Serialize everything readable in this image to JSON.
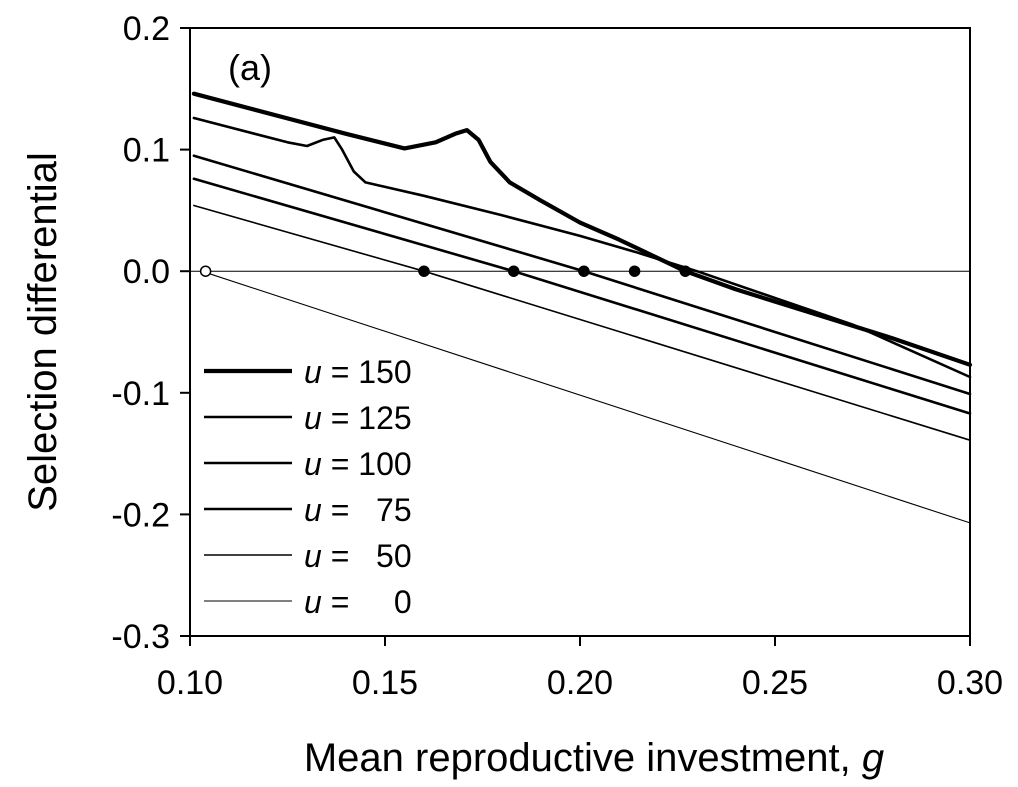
{
  "chart_data": {
    "type": "line",
    "panel_label": "(a)",
    "xlabel": "Mean reproductive investment, ",
    "xlabel_var": "g",
    "ylabel": "Selection differential",
    "xlim": [
      0.1,
      0.3
    ],
    "ylim": [
      -0.3,
      0.2
    ],
    "x_ticks": [
      "0.10",
      "0.15",
      "0.20",
      "0.25",
      "0.30"
    ],
    "y_ticks": [
      "0.2",
      "0.1",
      "0.0",
      "-0.1",
      "-0.2",
      "-0.3"
    ],
    "reference_line_y": 0,
    "legend_position": "bottom-left",
    "series": [
      {
        "name": "u = 150",
        "legend_var": "u",
        "legend_eq": " = 150",
        "weight": "heavy",
        "points": [
          [
            0.101,
            0.146
          ],
          [
            0.14,
            0.113
          ],
          [
            0.155,
            0.101
          ],
          [
            0.163,
            0.106
          ],
          [
            0.168,
            0.113
          ],
          [
            0.171,
            0.116
          ],
          [
            0.174,
            0.108
          ],
          [
            0.177,
            0.09
          ],
          [
            0.182,
            0.073
          ],
          [
            0.19,
            0.058
          ],
          [
            0.2,
            0.04
          ],
          [
            0.21,
            0.026
          ],
          [
            0.227,
            0.0
          ],
          [
            0.24,
            -0.015
          ],
          [
            0.26,
            -0.035
          ],
          [
            0.28,
            -0.055
          ],
          [
            0.3,
            -0.077
          ]
        ]
      },
      {
        "name": "u = 125",
        "legend_var": "u",
        "legend_eq": " = 125",
        "weight": "medium",
        "points": [
          [
            0.101,
            0.126
          ],
          [
            0.125,
            0.106
          ],
          [
            0.13,
            0.103
          ],
          [
            0.134,
            0.108
          ],
          [
            0.137,
            0.11
          ],
          [
            0.139,
            0.1
          ],
          [
            0.142,
            0.082
          ],
          [
            0.145,
            0.073
          ],
          [
            0.16,
            0.062
          ],
          [
            0.18,
            0.046
          ],
          [
            0.2,
            0.029
          ],
          [
            0.214,
            0.016
          ],
          [
            0.23,
            0.0
          ],
          [
            0.25,
            -0.022
          ],
          [
            0.27,
            -0.044
          ],
          [
            0.3,
            -0.087
          ]
        ]
      },
      {
        "name": "u = 100",
        "legend_var": "u",
        "legend_eq": " = 100",
        "weight": "medium",
        "points": [
          [
            0.101,
            0.095
          ],
          [
            0.201,
            0.0
          ],
          [
            0.3,
            -0.101
          ]
        ]
      },
      {
        "name": "u = 75",
        "legend_var": "u",
        "legend_eq": " =   75",
        "weight": "medium",
        "points": [
          [
            0.101,
            0.076
          ],
          [
            0.183,
            0.0
          ],
          [
            0.3,
            -0.117
          ]
        ]
      },
      {
        "name": "u = 50",
        "legend_var": "u",
        "legend_eq": " =   50",
        "weight": "light",
        "points": [
          [
            0.101,
            0.054
          ],
          [
            0.16,
            0.0
          ],
          [
            0.3,
            -0.139
          ]
        ]
      },
      {
        "name": "u = 0",
        "legend_var": "u",
        "legend_eq": " =     0",
        "weight": "thin",
        "points": [
          [
            0.103,
            0.0
          ],
          [
            0.3,
            -0.207
          ]
        ]
      }
    ],
    "equilibria": [
      {
        "x": 0.104,
        "y": 0.0,
        "filled": false
      },
      {
        "x": 0.16,
        "y": 0.0,
        "filled": true
      },
      {
        "x": 0.183,
        "y": 0.0,
        "filled": true
      },
      {
        "x": 0.201,
        "y": 0.0,
        "filled": true
      },
      {
        "x": 0.214,
        "y": 0.0,
        "filled": true
      },
      {
        "x": 0.227,
        "y": 0.0,
        "filled": true
      }
    ]
  }
}
